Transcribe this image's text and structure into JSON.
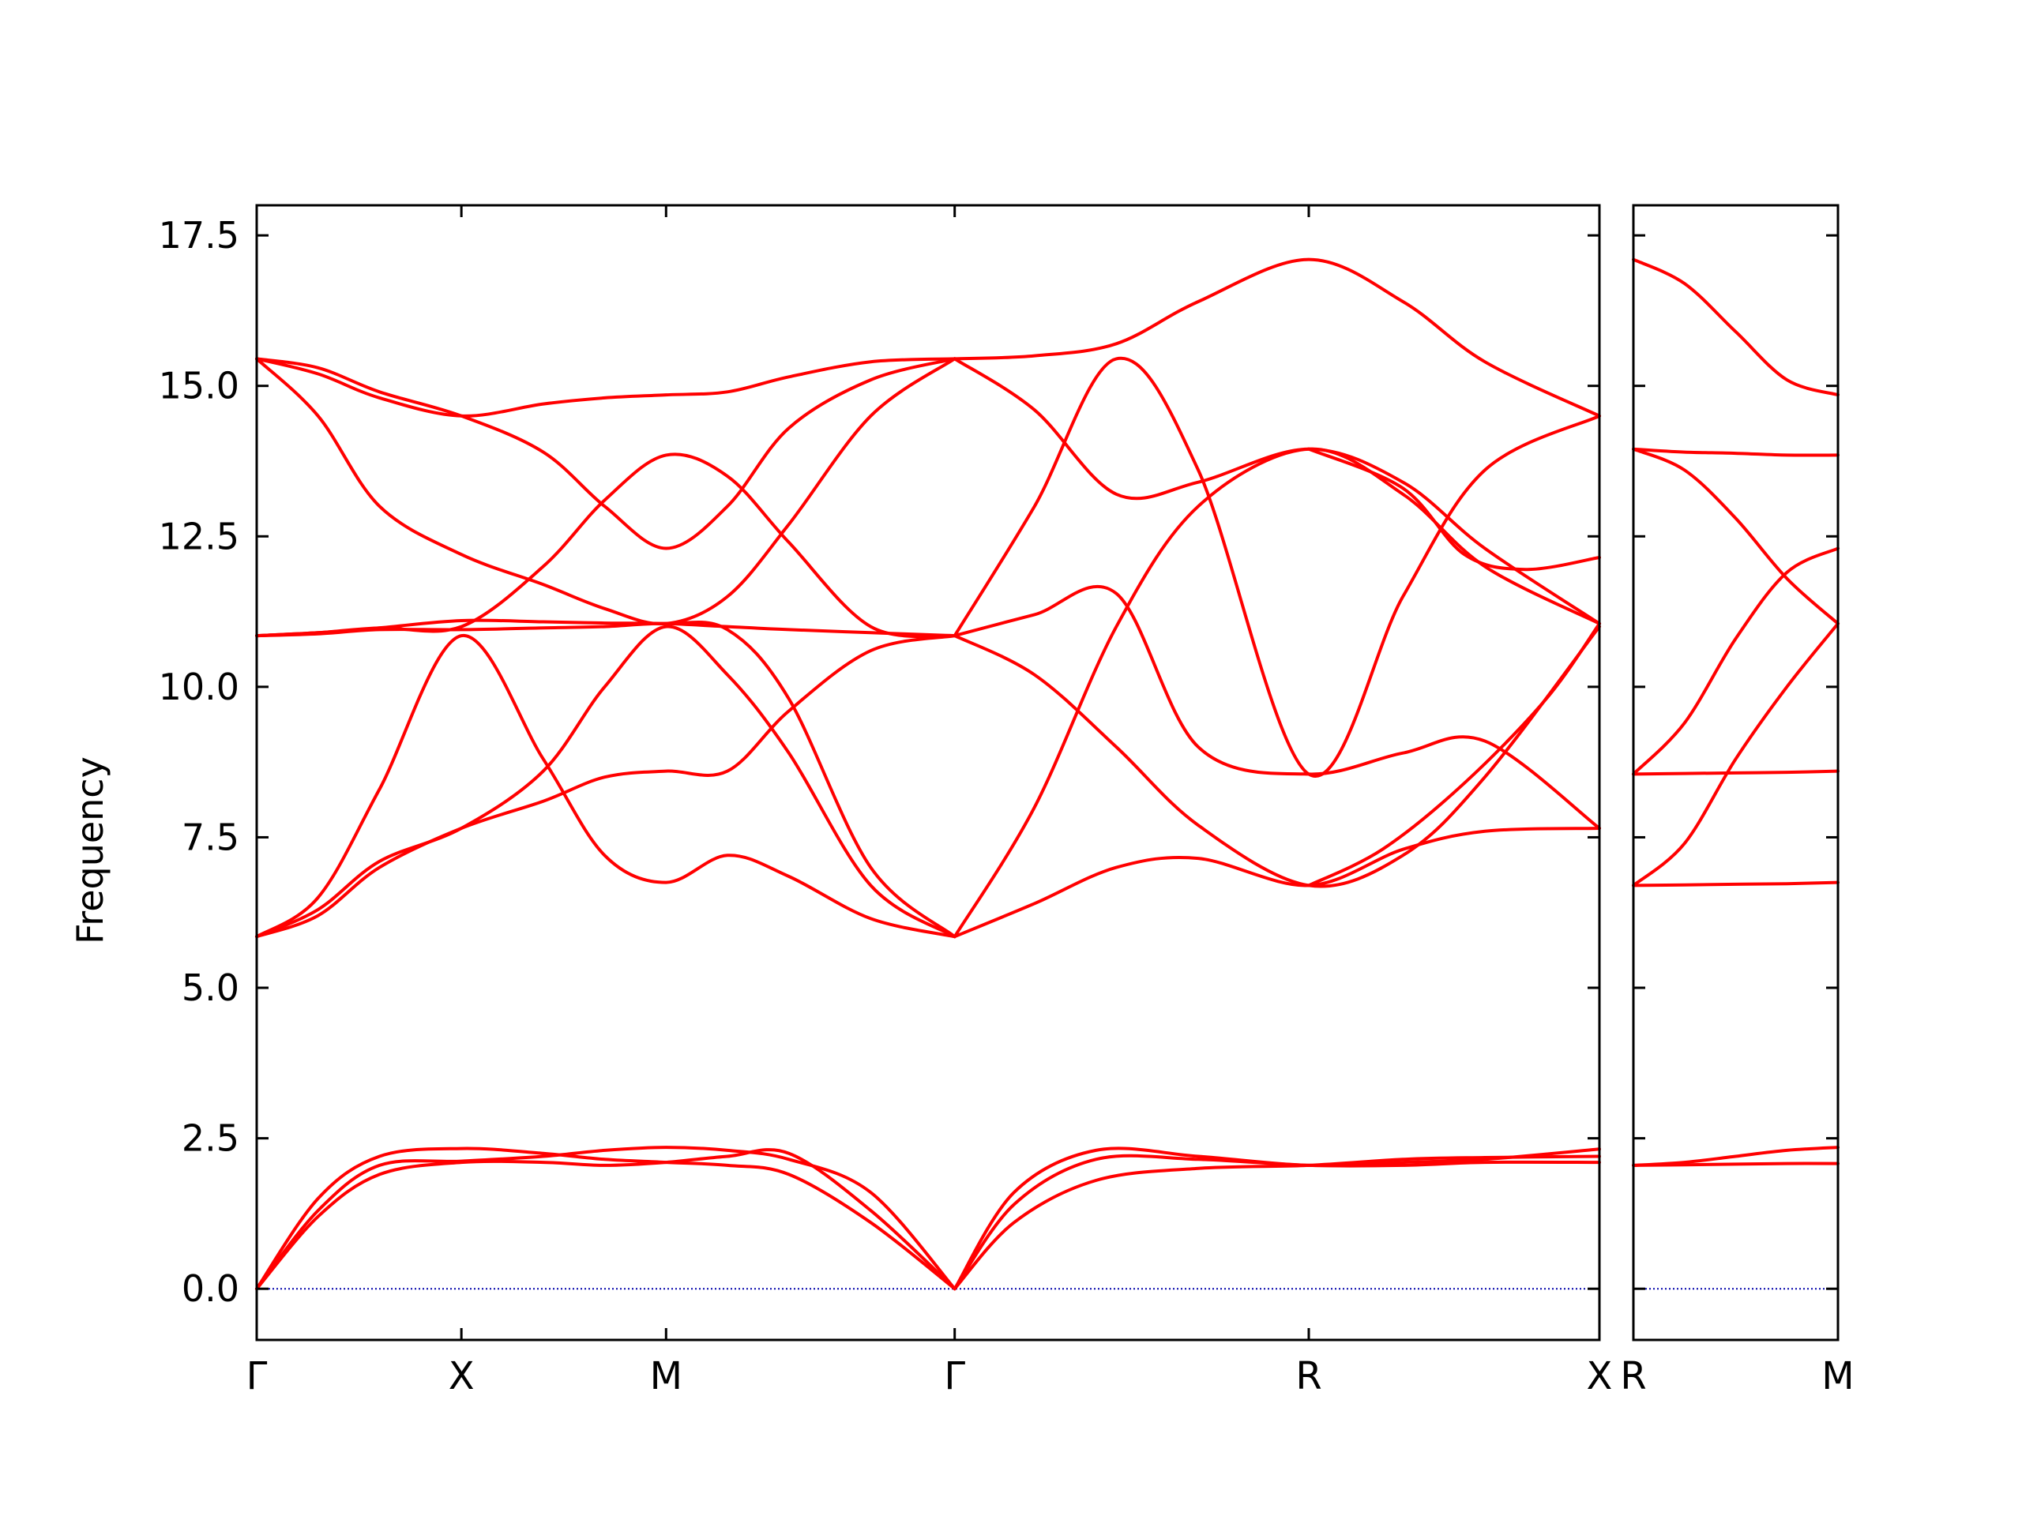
{
  "chart_data": {
    "type": "line",
    "title": "",
    "ylabel": "Frequency",
    "ylim": [
      -0.85,
      18.0
    ],
    "yticks": [
      "0.0",
      "2.5",
      "5.0",
      "7.5",
      "10.0",
      "12.5",
      "15.0",
      "17.5"
    ],
    "ytick_values": [
      0.0,
      2.5,
      5.0,
      7.5,
      10.0,
      12.5,
      15.0,
      17.5
    ],
    "grid": false,
    "legend": "none",
    "colors": {
      "bands": "#ff0000",
      "zero_line": "#0000aa",
      "axes": "#000000"
    },
    "panels": [
      {
        "id": "main",
        "xlim": [
          0,
          6.56
        ],
        "labels": [
          {
            "text": "Γ",
            "x": 0.0
          },
          {
            "text": "X",
            "x": 1.0
          },
          {
            "text": "M",
            "x": 2.0
          },
          {
            "text": "Γ",
            "x": 3.41
          },
          {
            "text": "R",
            "x": 5.14
          },
          {
            "text": "X",
            "x": 6.56
          }
        ],
        "bands": [
          {
            "x": [
              0,
              0.3,
              0.6,
              1.0,
              1.4,
              1.7,
              2.0,
              2.3,
              2.6,
              3.0,
              3.41
            ],
            "y": [
              0,
              1.2,
              1.9,
              2.1,
              2.1,
              2.05,
              2.1,
              2.2,
              2.25,
              1.3,
              0
            ]
          },
          {
            "x": [
              0,
              0.3,
              0.6,
              1.0,
              1.4,
              1.7,
              2.0,
              2.3,
              2.6,
              3.0,
              3.41
            ],
            "y": [
              0,
              1.3,
              2.05,
              2.12,
              2.2,
              2.3,
              2.35,
              2.3,
              2.15,
              1.6,
              0
            ]
          },
          {
            "x": [
              0,
              0.3,
              0.6,
              1.0,
              1.4,
              1.7,
              2.0,
              2.3,
              2.6,
              3.0,
              3.41
            ],
            "y": [
              0,
              1.5,
              2.2,
              2.33,
              2.25,
              2.15,
              2.1,
              2.05,
              1.9,
              1.1,
              0
            ]
          },
          {
            "x": [
              3.41,
              3.7,
              4.1,
              4.6,
              5.14,
              5.6,
              6.0,
              6.56
            ],
            "y": [
              0,
              1.4,
              2.15,
              2.15,
              2.05,
              2.05,
              2.1,
              2.1
            ]
          },
          {
            "x": [
              3.41,
              3.7,
              4.1,
              4.6,
              5.14,
              5.6,
              6.0,
              6.56
            ],
            "y": [
              0,
              1.6,
              2.3,
              2.2,
              2.05,
              2.1,
              2.15,
              2.32
            ]
          },
          {
            "x": [
              3.41,
              3.7,
              4.1,
              4.6,
              5.14,
              5.6,
              6.0,
              6.56
            ],
            "y": [
              0,
              1.1,
              1.8,
              2.0,
              2.05,
              2.15,
              2.18,
              2.2
            ]
          },
          {
            "x": [
              0,
              0.3,
              0.6,
              1.0,
              1.4,
              1.7,
              2.0,
              2.3,
              2.6,
              3.0,
              3.41
            ],
            "y": [
              5.85,
              6.2,
              7.0,
              7.65,
              8.1,
              8.5,
              8.6,
              8.6,
              9.6,
              10.6,
              10.85
            ]
          },
          {
            "x": [
              0,
              0.3,
              0.6,
              1.0,
              1.4,
              1.7,
              2.0,
              2.3,
              2.6,
              3.0,
              3.41
            ],
            "y": [
              5.85,
              6.5,
              8.3,
              10.85,
              8.8,
              7.2,
              6.75,
              7.2,
              6.85,
              6.15,
              5.85
            ]
          },
          {
            "x": [
              0,
              0.3,
              0.6,
              1.0,
              1.4,
              1.7,
              2.0,
              2.3,
              2.6,
              3.0,
              3.41
            ],
            "y": [
              5.85,
              6.3,
              7.1,
              7.65,
              8.6,
              10.0,
              11.0,
              10.2,
              8.9,
              6.7,
              5.85
            ]
          },
          {
            "x": [
              0,
              0.3,
              0.6,
              1.0,
              1.4,
              1.7,
              2.0,
              2.3,
              2.6,
              3.0,
              3.41
            ],
            "y": [
              10.85,
              10.88,
              10.95,
              10.95,
              10.98,
              11.0,
              11.05,
              10.95,
              9.8,
              7.0,
              5.85
            ]
          },
          {
            "x": [
              0,
              0.3,
              0.6,
              1.0,
              1.4,
              1.7,
              2.0,
              2.3,
              2.6,
              3.0,
              3.41
            ],
            "y": [
              10.85,
              10.9,
              10.98,
              11.1,
              11.08,
              11.06,
              11.05,
              11.0,
              10.95,
              10.9,
              10.85
            ]
          },
          {
            "x": [
              0,
              0.3,
              0.6,
              1.0,
              1.4,
              1.7,
              2.0,
              2.3,
              2.6,
              3.0,
              3.41
            ],
            "y": [
              10.85,
              10.9,
              10.98,
              11.0,
              12.0,
              13.1,
              13.85,
              13.5,
              12.4,
              11.0,
              10.85
            ]
          },
          {
            "x": [
              0,
              0.3,
              0.6,
              1.0,
              1.4,
              1.7,
              2.0,
              2.3,
              2.6,
              3.0,
              3.41
            ],
            "y": [
              15.45,
              14.5,
              13.0,
              12.2,
              11.7,
              11.3,
              11.05,
              11.5,
              12.7,
              14.5,
              15.45
            ]
          },
          {
            "x": [
              0,
              0.3,
              0.6,
              1.0,
              1.4,
              1.7,
              2.0,
              2.3,
              2.6,
              3.0,
              3.41
            ],
            "y": [
              15.45,
              15.3,
              14.9,
              14.5,
              13.9,
              13.0,
              12.3,
              13.0,
              14.3,
              15.1,
              15.45
            ]
          },
          {
            "x": [
              0,
              0.3,
              0.6,
              1.0,
              1.4,
              1.7,
              2.0,
              2.3,
              2.6,
              3.0,
              3.41
            ],
            "y": [
              15.45,
              15.2,
              14.8,
              14.5,
              14.7,
              14.8,
              14.85,
              14.9,
              15.15,
              15.4,
              15.45
            ]
          },
          {
            "x": [
              3.41,
              3.8,
              4.2,
              4.6,
              5.14,
              5.6,
              6.0,
              6.56
            ],
            "y": [
              5.85,
              6.4,
              7.0,
              7.15,
              6.7,
              7.3,
              7.6,
              7.65
            ]
          },
          {
            "x": [
              3.41,
              3.8,
              4.2,
              4.6,
              5.14,
              5.6,
              6.0,
              6.56
            ],
            "y": [
              10.85,
              11.2,
              11.55,
              9.0,
              8.55,
              8.9,
              9.1,
              7.65
            ]
          },
          {
            "x": [
              3.41,
              3.8,
              4.2,
              4.6,
              5.14,
              5.6,
              6.0,
              6.56
            ],
            "y": [
              10.85,
              10.2,
              9.0,
              7.7,
              6.7,
              7.2,
              8.5,
              11.0
            ]
          },
          {
            "x": [
              3.41,
              3.8,
              4.2,
              4.6,
              5.14,
              5.6,
              6.0,
              6.56
            ],
            "y": [
              5.85,
              8.0,
              11.0,
              13.0,
              13.95,
              13.2,
              12.0,
              11.05
            ]
          },
          {
            "x": [
              3.41,
              3.8,
              4.2,
              4.6,
              5.14,
              5.6,
              6.0,
              6.56
            ],
            "y": [
              15.45,
              14.6,
              13.2,
              13.4,
              13.95,
              13.4,
              12.3,
              11.05
            ]
          },
          {
            "x": [
              3.41,
              3.8,
              4.2,
              4.6,
              5.14,
              5.6,
              6.0,
              6.56
            ],
            "y": [
              10.85,
              13.0,
              15.45,
              13.6,
              8.55,
              11.5,
              13.6,
              14.5
            ]
          },
          {
            "x": [
              3.41,
              3.8,
              4.2,
              4.6,
              5.14,
              5.6,
              6.0,
              6.56
            ],
            "y": [
              15.45,
              15.5,
              15.7,
              16.4,
              17.1,
              16.4,
              15.4,
              14.5
            ]
          },
          {
            "x": [
              5.14,
              5.6,
              5.9,
              6.2,
              6.56
            ],
            "y": [
              13.95,
              13.3,
              12.2,
              11.95,
              12.15
            ]
          },
          {
            "x": [
              5.14,
              5.5,
              5.9,
              6.3,
              6.56
            ],
            "y": [
              6.7,
              7.3,
              8.4,
              9.8,
              11.05
            ]
          }
        ]
      },
      {
        "id": "side",
        "xlim": [
          0,
          1.0
        ],
        "labels": [
          {
            "text": "R",
            "x": 0.0
          },
          {
            "text": "M",
            "x": 1.0
          }
        ],
        "bands": [
          {
            "x": [
              0,
              0.25,
              0.5,
              0.75,
              1.0
            ],
            "y": [
              2.05,
              2.06,
              2.07,
              2.08,
              2.08
            ]
          },
          {
            "x": [
              0,
              0.25,
              0.5,
              0.75,
              1.0
            ],
            "y": [
              2.05,
              2.1,
              2.2,
              2.3,
              2.35
            ]
          },
          {
            "x": [
              0,
              0.25,
              0.5,
              0.75,
              1.0
            ],
            "y": [
              6.7,
              6.71,
              6.72,
              6.73,
              6.75
            ]
          },
          {
            "x": [
              0,
              0.25,
              0.5,
              0.75,
              1.0
            ],
            "y": [
              8.55,
              8.56,
              8.57,
              8.58,
              8.6
            ]
          },
          {
            "x": [
              0,
              0.25,
              0.5,
              0.75,
              1.0
            ],
            "y": [
              6.7,
              7.4,
              8.8,
              10.0,
              11.05
            ]
          },
          {
            "x": [
              0,
              0.25,
              0.5,
              0.75,
              1.0
            ],
            "y": [
              8.55,
              9.4,
              10.8,
              11.9,
              12.3
            ]
          },
          {
            "x": [
              0,
              0.25,
              0.5,
              0.75,
              1.0
            ],
            "y": [
              13.95,
              13.6,
              12.8,
              11.8,
              11.05
            ]
          },
          {
            "x": [
              0,
              0.25,
              0.5,
              0.75,
              1.0
            ],
            "y": [
              13.95,
              13.9,
              13.88,
              13.85,
              13.85
            ]
          },
          {
            "x": [
              0,
              0.25,
              0.5,
              0.75,
              1.0
            ],
            "y": [
              17.1,
              16.7,
              15.9,
              15.1,
              14.85
            ]
          }
        ]
      }
    ]
  }
}
